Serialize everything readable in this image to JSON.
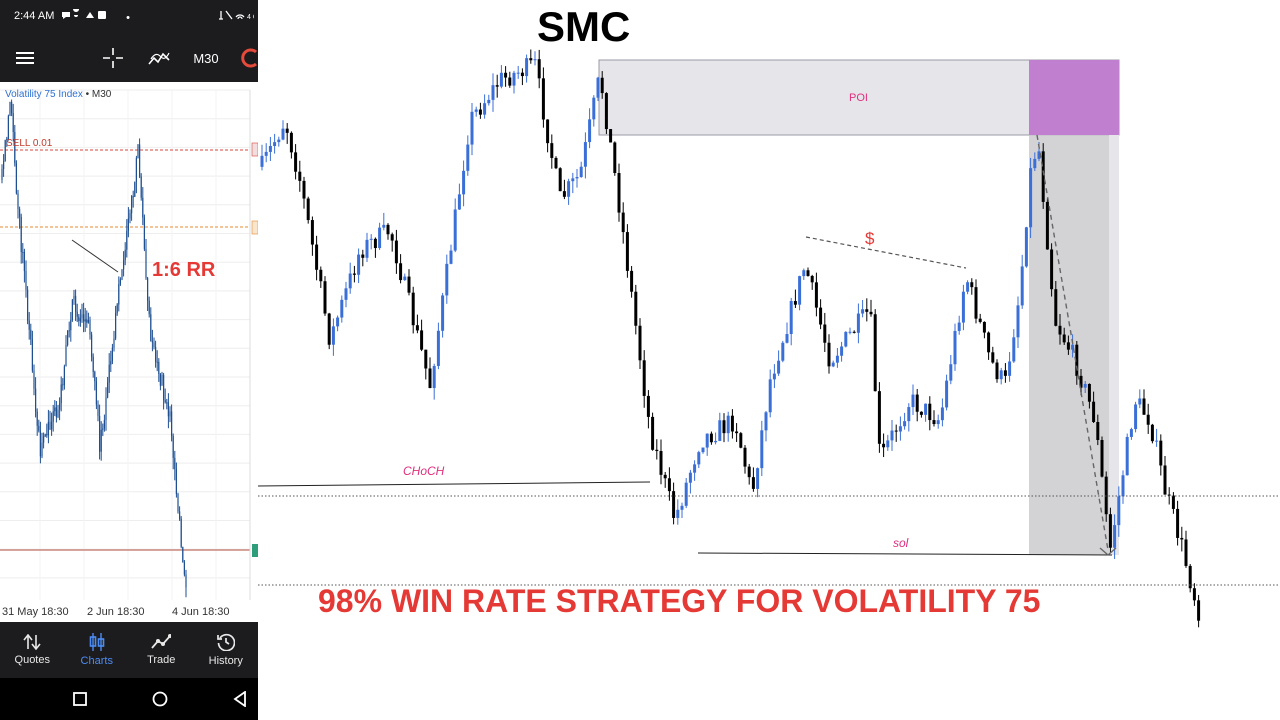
{
  "status_bar": {
    "time": "2:44 AM",
    "dot": "•"
  },
  "toolbar": {
    "timeframe": "M30"
  },
  "mini_chart": {
    "symbol": "Volatility 75 Index",
    "separator": "•",
    "timeframe": "M30",
    "order_label": "SELL 0.01",
    "rr_label": "1:6 RR",
    "x_labels": [
      "31 May 18:30",
      "2 Jun 18:30",
      "4 Jun 18:30"
    ]
  },
  "bottom_nav": [
    {
      "label": "Quotes",
      "icon": "quotes-arrows-icon",
      "active": false
    },
    {
      "label": "Charts",
      "icon": "candles-icon",
      "active": true
    },
    {
      "label": "Trade",
      "icon": "trend-line-icon",
      "active": false
    },
    {
      "label": "History",
      "icon": "history-clock-icon",
      "active": false
    }
  ],
  "main_chart": {
    "title": "SMC",
    "zone_label": "POI",
    "liquidity_label": "$",
    "choch_label": "CHoCH",
    "sol_label": "sol",
    "headline": "98% WIN RATE STRATEGY FOR VOLATILITY 75"
  },
  "colors": {
    "bull_candle": "#3b6fd8",
    "bear_candle": "#000000",
    "poi_zone": "#e6e6ea",
    "poi_highlight": "#c17fcf",
    "headline": "#e53935",
    "annotation": "#e0307f",
    "ui_dark": "#1c1c1e",
    "nav_active": "#4d8cf5"
  }
}
